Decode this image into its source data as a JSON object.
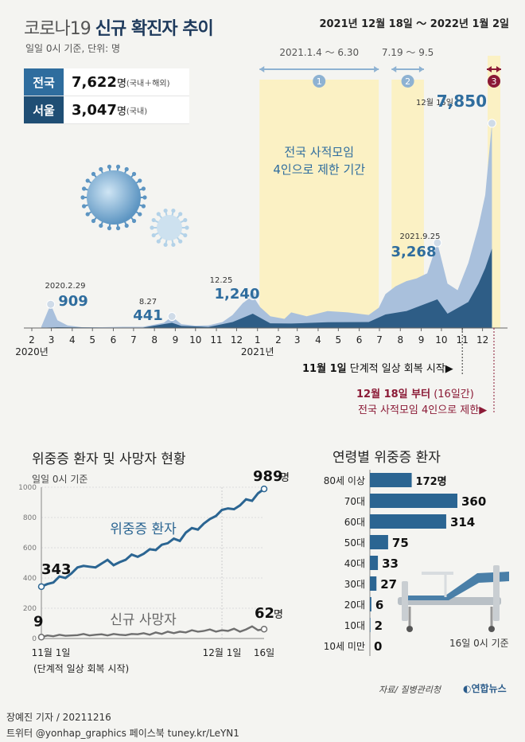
{
  "header": {
    "title_light": "코로나19",
    "title_bold": "신규 확진자 추이",
    "subtitle": "일일 0시 기준, 단위: 명"
  },
  "summary": {
    "national_label": "전국",
    "national_value": "7,622",
    "national_unit": "명",
    "national_note": "(국내＋해외)",
    "seoul_label": "서울",
    "seoul_value": "3,047",
    "seoul_unit": "명",
    "seoul_note": "(국내)"
  },
  "colors": {
    "national": "#2f6d9e",
    "seoul": "#1f4e74",
    "accent_red": "#8b1a36",
    "highlight": "#fbf1c4",
    "light_series": "#a9c0dc",
    "dark_series": "#2e5d86",
    "bar": "#2b6592"
  },
  "chart_data": [
    {
      "type": "area",
      "title": "코로나19 신규 확진자 추이",
      "unit": "명",
      "x_ticks": [
        "2",
        "3",
        "4",
        "5",
        "6",
        "7",
        "8",
        "9",
        "10",
        "11",
        "12",
        "1",
        "2",
        "3",
        "4",
        "5",
        "6",
        "7",
        "8",
        "9",
        "10",
        "11",
        "12"
      ],
      "year_labels": [
        "2020년",
        "2021년"
      ],
      "series": [
        {
          "name": "전국",
          "x": [
            "2020-02-15",
            "2020-02-29",
            "2020-03-10",
            "2020-03-25",
            "2020-04-15",
            "2020-05-15",
            "2020-06-15",
            "2020-07-15",
            "2020-08-15",
            "2020-08-27",
            "2020-09-10",
            "2020-10-01",
            "2020-10-20",
            "2020-11-10",
            "2020-11-25",
            "2020-12-10",
            "2020-12-25",
            "2021-01-05",
            "2021-01-20",
            "2021-02-10",
            "2021-02-20",
            "2021-03-15",
            "2021-04-15",
            "2021-05-15",
            "2021-06-15",
            "2021-06-30",
            "2021-07-10",
            "2021-07-25",
            "2021-08-10",
            "2021-08-25",
            "2021-09-10",
            "2021-09-25",
            "2021-10-10",
            "2021-10-25",
            "2021-11-10",
            "2021-11-25",
            "2021-12-05",
            "2021-12-15"
          ],
          "values": [
            50,
            909,
            300,
            100,
            30,
            30,
            45,
            45,
            200,
            441,
            150,
            90,
            100,
            230,
            500,
            950,
            1240,
            800,
            450,
            350,
            600,
            450,
            650,
            600,
            500,
            780,
            1300,
            1600,
            1800,
            1900,
            2100,
            3268,
            1700,
            1450,
            2500,
            3900,
            5100,
            7850
          ]
        },
        {
          "name": "서울",
          "x": [
            "2020-02-15",
            "2020-03-10",
            "2020-05-15",
            "2020-07-15",
            "2020-08-27",
            "2020-09-10",
            "2020-10-20",
            "2020-11-25",
            "2020-12-25",
            "2021-01-20",
            "2021-02-20",
            "2021-04-15",
            "2021-06-15",
            "2021-07-10",
            "2021-08-10",
            "2021-09-25",
            "2021-10-10",
            "2021-11-10",
            "2021-11-25",
            "2021-12-05",
            "2021-12-15"
          ],
          "values": [
            5,
            30,
            15,
            15,
            200,
            80,
            40,
            230,
            550,
            180,
            170,
            220,
            230,
            520,
            650,
            1100,
            550,
            1000,
            1700,
            2300,
            3047
          ]
        }
      ],
      "annotations": [
        {
          "date": "2020.2.29",
          "value": "909"
        },
        {
          "date": "8.27",
          "value": "441"
        },
        {
          "date": "12.25",
          "value": "1,240"
        },
        {
          "date": "2021.9.25",
          "value": "3,268"
        },
        {
          "date": "12월 15일",
          "value": "7,850"
        }
      ],
      "periods": [
        {
          "num": "1",
          "label": "2021.1.4 ～ 6.30"
        },
        {
          "num": "2",
          "label": "7.19 ～ 9.5"
        },
        {
          "num": "3",
          "label": "2021년 12월 18일 ～ 2022년 1월 2일"
        }
      ],
      "period_note_line1": "전국 사적모임",
      "period_note_line2": "4인으로 제한 기간",
      "event_nov_bold": "11월 1일",
      "event_nov_text": "단계적 일상 회복 시작",
      "event_dec_bold": "12월 18일 부터",
      "event_dec_days": "(16일간)",
      "event_dec_text": "전국 사적모임 4인으로 제한"
    },
    {
      "type": "line",
      "title": "위중증 환자 및 사망자 현황",
      "subtitle": "일일 0시 기준",
      "ylim": [
        0,
        1000
      ],
      "y_ticks": [
        "0",
        "200",
        "400",
        "600",
        "800",
        "1000"
      ],
      "x_labels": [
        "11월 1일",
        "12월 1일",
        "16일"
      ],
      "x_note": "(단계적 일상 회복 시작)",
      "series": [
        {
          "name": "위중증 환자",
          "values": [
            343,
            360,
            370,
            410,
            400,
            430,
            470,
            480,
            475,
            470,
            495,
            520,
            485,
            505,
            520,
            555,
            540,
            560,
            590,
            585,
            620,
            630,
            660,
            645,
            700,
            730,
            720,
            760,
            790,
            810,
            850,
            860,
            855,
            880,
            920,
            910,
            960,
            989
          ],
          "start_label": "343",
          "end_label": "989",
          "end_unit": "명"
        },
        {
          "name": "신규 사망자",
          "values": [
            9,
            20,
            15,
            25,
            18,
            20,
            22,
            30,
            20,
            25,
            28,
            20,
            30,
            25,
            22,
            30,
            28,
            35,
            25,
            40,
            30,
            45,
            35,
            45,
            40,
            55,
            45,
            50,
            60,
            45,
            55,
            50,
            65,
            45,
            60,
            80,
            55,
            62
          ],
          "start_label": "9",
          "end_label": "62",
          "end_unit": "명"
        }
      ]
    },
    {
      "type": "bar",
      "title": "연령별 위중증 환자",
      "categories": [
        "80세 이상",
        "70대",
        "60대",
        "50대",
        "40대",
        "30대",
        "20대",
        "10대",
        "10세 미만"
      ],
      "values": [
        172,
        360,
        314,
        75,
        33,
        27,
        6,
        2,
        0
      ],
      "labels": [
        "172명",
        "360",
        "314",
        "75",
        "33",
        "27",
        "6",
        "2",
        "0"
      ],
      "note": "16일 0시 기준"
    }
  ],
  "footer": {
    "source": "자료/ 질병관리청",
    "logo": "연합뉴스",
    "credit": "장예진 기자 / 20211216",
    "social": "트위터 @yonhap_graphics  페이스북 tuney.kr/LeYN1"
  }
}
